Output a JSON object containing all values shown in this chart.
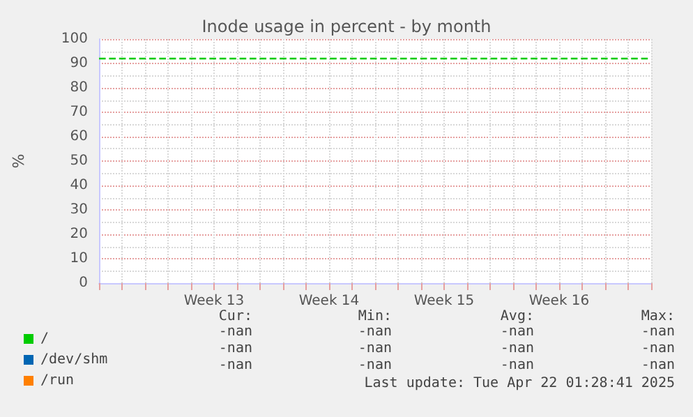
{
  "chart_data": {
    "type": "line",
    "title": "Inode usage in percent - by month",
    "ylabel": "%",
    "categories": [
      null,
      null,
      null,
      null,
      null,
      "Week 13",
      null,
      null,
      null,
      null,
      "Week 14",
      null,
      null,
      null,
      null,
      "Week 15",
      null,
      null,
      null,
      null,
      "Week 16",
      null,
      null,
      null,
      null
    ],
    "series": [
      {
        "name": "/",
        "color": "#00cc00",
        "values": [
          92,
          92,
          92,
          92,
          92,
          92,
          92,
          92,
          92,
          92,
          92,
          92,
          92,
          92,
          92,
          92,
          92,
          92,
          92,
          92,
          92,
          92,
          92,
          92,
          92
        ]
      },
      {
        "name": "/dev/shm",
        "color": "#0066b3",
        "values": [
          null,
          null,
          null,
          null,
          null,
          null,
          null,
          null,
          null,
          null,
          null,
          null,
          null,
          null,
          null,
          null,
          null,
          null,
          null,
          null,
          null,
          null,
          null,
          null,
          null
        ]
      },
      {
        "name": "/run",
        "color": "#ff8000",
        "values": [
          null,
          null,
          null,
          null,
          null,
          null,
          null,
          null,
          null,
          null,
          null,
          null,
          null,
          null,
          null,
          null,
          null,
          null,
          null,
          null,
          null,
          null,
          null,
          null,
          null
        ]
      }
    ],
    "ylim": [
      0,
      100
    ],
    "yticks": [
      0,
      10,
      20,
      30,
      40,
      50,
      60,
      70,
      80,
      90,
      100
    ],
    "grid": true,
    "legend": "bottom left",
    "marker": "none",
    "line_style": "dashed",
    "annotations": [
      "Cur:",
      "Min:",
      "Avg:",
      "Max:",
      "-nan",
      "-nan",
      "-nan",
      "-nan",
      "-nan",
      "-nan",
      "-nan",
      "-nan",
      "-nan",
      "-nan",
      "-nan",
      "-nan",
      "Last update: Tue Apr 22 01:28:41 2025"
    ]
  }
}
